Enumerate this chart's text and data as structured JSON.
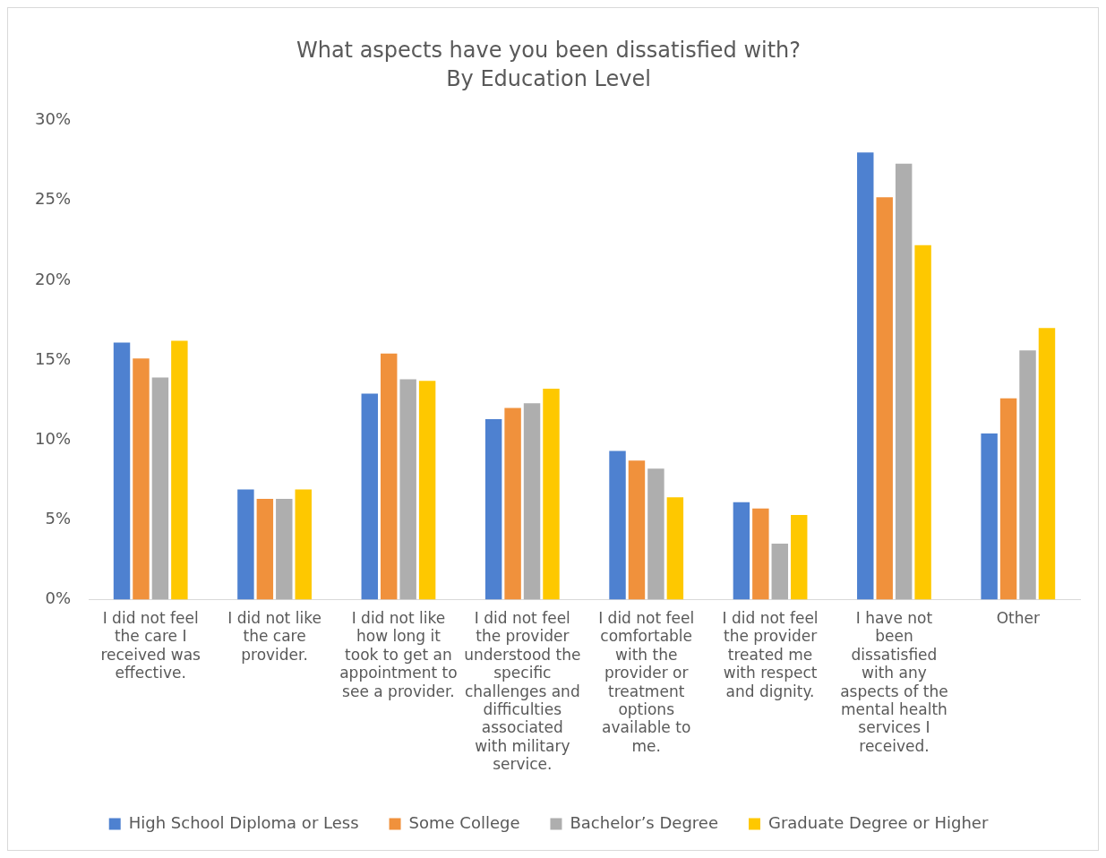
{
  "chart_data": {
    "type": "bar",
    "title": "What aspects have you been dissatisfied with?",
    "subtitle": "By Education Level",
    "categories": [
      "I did not feel the care I received was effective.",
      "I did not like the care provider.",
      "I did not like how long it took to get an appointment to see a provider.",
      "I did not feel the provider understood the specific challenges and difficulties associated with military service.",
      "I did not feel comfortable with the provider or treatment options available to me.",
      "I did not feel the provider treated me with respect and dignity.",
      "I have not been dissatisfied with any aspects of the mental health services I received.",
      "Other"
    ],
    "series": [
      {
        "name": "High School Diploma or Less",
        "color": "#4e81d0",
        "values": [
          16.1,
          6.9,
          12.9,
          11.3,
          9.3,
          6.1,
          28.0,
          10.4
        ]
      },
      {
        "name": "Some College",
        "color": "#f0913c",
        "values": [
          15.1,
          6.3,
          15.4,
          12.0,
          8.7,
          5.7,
          25.2,
          12.6
        ]
      },
      {
        "name": "Bachelor’s Degree",
        "color": "#aeaeae",
        "values": [
          13.9,
          6.3,
          13.8,
          12.3,
          8.2,
          3.5,
          27.3,
          15.6
        ]
      },
      {
        "name": "Graduate Degree or Higher",
        "color": "#fec800",
        "values": [
          16.2,
          6.9,
          13.7,
          13.2,
          6.4,
          5.3,
          22.2,
          17.0
        ]
      }
    ],
    "ylim": [
      0,
      30
    ],
    "yticks": [
      {
        "value": 0,
        "label": "0%"
      },
      {
        "value": 5,
        "label": "5%"
      },
      {
        "value": 10,
        "label": "10%"
      },
      {
        "value": 15,
        "label": "15%"
      },
      {
        "value": 20,
        "label": "20%"
      },
      {
        "value": 25,
        "label": "25%"
      },
      {
        "value": 30,
        "label": "30%"
      }
    ],
    "grid": false,
    "legend": "bottom"
  }
}
